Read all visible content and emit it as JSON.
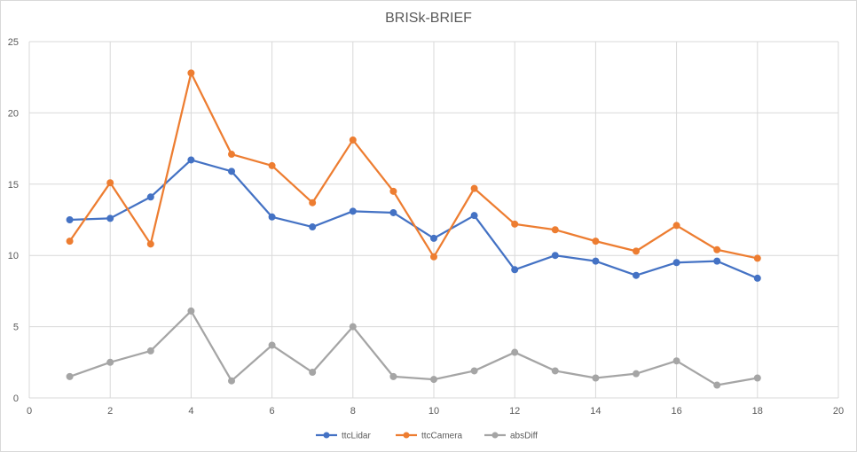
{
  "chart_data": {
    "type": "scatter",
    "title": "BRISk-BRIEF",
    "xlabel": "",
    "ylabel": "",
    "xlim": [
      0,
      20
    ],
    "ylim": [
      0,
      25
    ],
    "xticks": [
      0,
      2,
      4,
      6,
      8,
      10,
      12,
      14,
      16,
      18,
      20
    ],
    "yticks": [
      0,
      5,
      10,
      15,
      20,
      25
    ],
    "grid": true,
    "legend_position": "bottom",
    "x": [
      1,
      2,
      3,
      4,
      5,
      6,
      7,
      8,
      9,
      10,
      11,
      12,
      13,
      14,
      15,
      16,
      17,
      18
    ],
    "series": [
      {
        "name": "ttcLidar",
        "color": "#4472C4",
        "values": [
          12.5,
          12.6,
          14.1,
          16.7,
          15.9,
          12.7,
          12.0,
          13.1,
          13.0,
          11.2,
          12.8,
          9.0,
          10.0,
          9.6,
          8.6,
          9.5,
          9.6,
          8.4
        ]
      },
      {
        "name": "ttcCamera",
        "color": "#ED7D31",
        "values": [
          11.0,
          15.1,
          10.8,
          22.8,
          17.1,
          16.3,
          13.7,
          18.1,
          14.5,
          9.9,
          14.7,
          12.2,
          11.8,
          11.0,
          10.3,
          12.1,
          10.4,
          9.8
        ]
      },
      {
        "name": "absDiff",
        "color": "#A5A5A5",
        "values": [
          1.5,
          2.5,
          3.3,
          6.1,
          1.2,
          3.7,
          1.8,
          5.0,
          1.5,
          1.3,
          1.9,
          3.2,
          1.9,
          1.4,
          1.7,
          2.6,
          0.9,
          1.4
        ]
      }
    ]
  }
}
